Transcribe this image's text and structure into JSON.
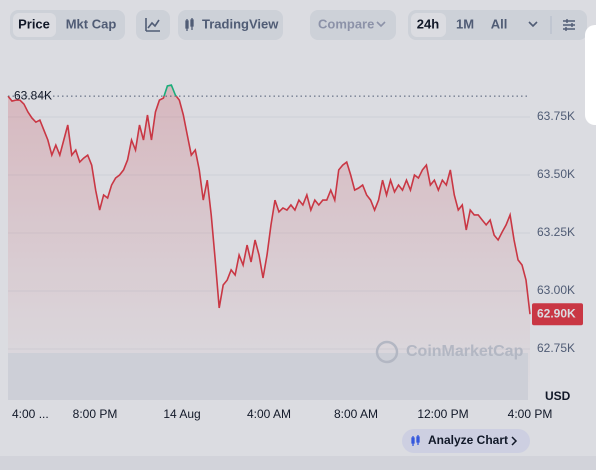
{
  "toolbar": {
    "tabs": [
      "Price",
      "Mkt Cap"
    ],
    "tradingview": "TradingView",
    "compare": "Compare",
    "ranges": [
      "24h",
      "1M",
      "All"
    ]
  },
  "chart_data": {
    "type": "line",
    "series": [
      {
        "name": "Price",
        "color": "#ea3943",
        "up_color": "#16c784",
        "values": [
          63840,
          63819,
          63823,
          63823,
          63806,
          63772,
          63746,
          63728,
          63737,
          63694,
          63651,
          63586,
          63629,
          63586,
          63651,
          63716,
          63586,
          63608,
          63556,
          63573,
          63586,
          63543,
          63435,
          63349,
          63414,
          63401,
          63457,
          63487,
          63500,
          63522,
          63565,
          63651,
          63608,
          63716,
          63651,
          63759,
          63651,
          63772,
          63823,
          63832,
          63884,
          63888,
          63845,
          63823,
          63759,
          63672,
          63586,
          63608,
          63522,
          63392,
          63478,
          63328,
          63134,
          62927,
          63026,
          63047,
          63091,
          63069,
          63155,
          63112,
          63198,
          63125,
          63220,
          63155,
          63056,
          63155,
          63285,
          63392,
          63341,
          63358,
          63349,
          63371,
          63349,
          63392,
          63371,
          63414,
          63349,
          63392,
          63371,
          63392,
          63392,
          63435,
          63392,
          63522,
          63543,
          63556,
          63500,
          63435,
          63444,
          63457,
          63414,
          63392,
          63349,
          63392,
          63478,
          63414,
          63478,
          63427,
          63457,
          63435,
          63478,
          63435,
          63500,
          63487,
          63522,
          63543,
          63457,
          63478,
          63435,
          63478,
          63457,
          63522,
          63414,
          63349,
          63371,
          63263,
          63349,
          63328,
          63328,
          63306,
          63285,
          63306,
          63241,
          63220,
          63254,
          63285,
          63328,
          63220,
          63134,
          63112,
          63047,
          62900
        ]
      }
    ],
    "reference": {
      "value": 63840,
      "label": "63.84K"
    },
    "last_price_label": "62.90K",
    "ylim": [
      62530,
      63996
    ],
    "yticks": [
      {
        "value": 62750,
        "label": "62.75K"
      },
      {
        "value": 63000,
        "label": "63.00K"
      },
      {
        "value": 63250,
        "label": "63.25K"
      },
      {
        "value": 63500,
        "label": "63.50K"
      },
      {
        "value": 63750,
        "label": "63.75K"
      }
    ],
    "grid": true,
    "xticks": [
      "4:00 ...",
      "8:00 PM",
      "14 Aug",
      "4:00 AM",
      "8:00 AM",
      "12:00 PM",
      "4:00 PM"
    ],
    "currency": "USD",
    "watermark": "CoinMarketCap"
  },
  "analyze_button": "Analyze Chart"
}
